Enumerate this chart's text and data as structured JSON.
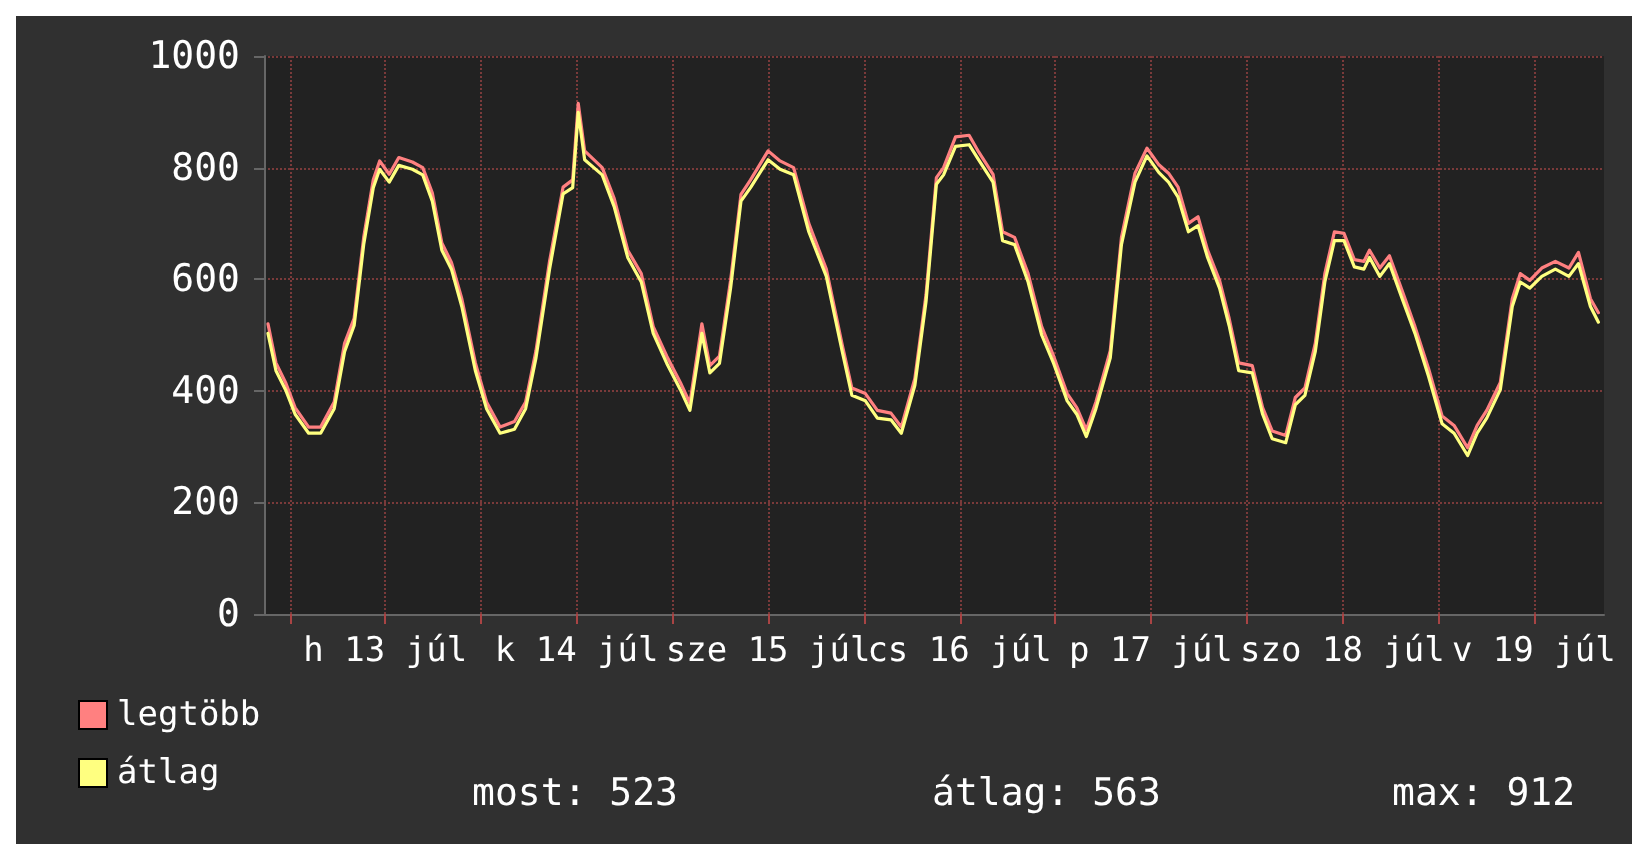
{
  "chart_data": {
    "type": "line",
    "x": [
      "--07-12T21:18",
      "--07-12T22:18",
      "--07-12T23:30",
      "--07-13T00:42",
      "--07-13T02:24",
      "--07-13T03:54",
      "--07-13T05:36",
      "--07-13T06:54",
      "--07-13T08:06",
      "--07-13T09:18",
      "--07-13T10:30",
      "--07-13T11:18",
      "--07-13T12:30",
      "--07-13T13:42",
      "--07-13T15:24",
      "--07-13T16:42",
      "--07-13T17:54",
      "--07-13T19:06",
      "--07-13T20:18",
      "--07-13T21:36",
      "--07-13T23:18",
      "--07-14T00:42",
      "--07-14T02:24",
      "--07-14T04:12",
      "--07-14T05:36",
      "--07-14T06:54",
      "--07-14T08:36",
      "--07-14T10:18",
      "--07-14T11:30",
      "--07-14T12:12",
      "--07-14T13:00",
      "--07-14T15:12",
      "--07-14T16:42",
      "--07-14T18:24",
      "--07-14T20:06",
      "--07-14T21:36",
      "--07-14T23:18",
      "--07-15T01:00",
      "--07-15T02:12",
      "--07-15T03:42",
      "--07-15T04:42",
      "--07-15T05:54",
      "--07-15T07:18",
      "--07-15T08:36",
      "--07-15T09:48",
      "--07-15T12:00",
      "--07-15T13:30",
      "--07-15T15:12",
      "--07-15T17:06",
      "--07-15T19:18",
      "--07-15T21:18",
      "--07-15T22:30",
      "--07-16T00:12",
      "--07-16T01:42",
      "--07-16T03:24",
      "--07-16T04:42",
      "--07-16T06:24",
      "--07-16T07:48",
      "--07-16T09:06",
      "--07-16T10:00",
      "--07-16T11:30",
      "--07-16T13:12",
      "--07-16T14:24",
      "--07-16T16:12",
      "--07-16T17:24",
      "--07-16T18:54",
      "--07-16T20:36",
      "--07-16T22:18",
      "--07-16T23:48",
      "--07-17T01:30",
      "--07-17T02:42",
      "--07-17T03:54",
      "--07-17T05:06",
      "--07-17T06:54",
      "--07-17T08:18",
      "--07-17T10:00",
      "--07-17T11:30",
      "--07-17T13:00",
      "--07-17T14:12",
      "--07-17T15:24",
      "--07-17T16:42",
      "--07-17T17:54",
      "--07-17T19:06",
      "--07-17T20:36",
      "--07-17T21:48",
      "--07-17T23:00",
      "--07-18T00:42",
      "--07-18T02:00",
      "--07-18T03:12",
      "--07-18T04:54",
      "--07-18T06:06",
      "--07-18T07:18",
      "--07-18T08:36",
      "--07-18T09:48",
      "--07-18T11:00",
      "--07-18T12:12",
      "--07-18T13:30",
      "--07-18T14:42",
      "--07-18T15:24",
      "--07-18T16:42",
      "--07-18T17:54",
      "--07-18T19:36",
      "--07-18T21:06",
      "--07-18T22:48",
      "--07-19T00:30",
      "--07-19T02:00",
      "--07-19T03:42",
      "--07-19T04:54",
      "--07-19T06:06",
      "--07-19T07:48",
      "--07-19T09:18",
      "--07-19T10:18",
      "--07-19T11:30",
      "--07-19T13:00",
      "--07-19T14:42",
      "--07-19T16:24",
      "--07-19T17:36",
      "--07-19T19:06",
      "--07-19T20:06"
    ],
    "series": [
      {
        "name": "legtöbb",
        "color": "#ff8080",
        "values": [
          520,
          450,
          415,
          370,
          335,
          335,
          380,
          485,
          530,
          675,
          778,
          812,
          788,
          818,
          810,
          800,
          755,
          665,
          630,
          565,
          450,
          380,
          335,
          345,
          380,
          472,
          632,
          765,
          778,
          915,
          830,
          800,
          745,
          652,
          610,
          515,
          462,
          415,
          378,
          520,
          445,
          462,
          598,
          752,
          778,
          830,
          812,
          800,
          700,
          618,
          482,
          405,
          395,
          365,
          360,
          335,
          422,
          572,
          782,
          800,
          855,
          858,
          828,
          788,
          685,
          675,
          610,
          515,
          462,
          395,
          370,
          330,
          380,
          472,
          675,
          790,
          835,
          805,
          790,
          765,
          700,
          712,
          652,
          598,
          530,
          450,
          445,
          370,
          328,
          320,
          388,
          405,
          485,
          610,
          685,
          682,
          635,
          632,
          652,
          620,
          642,
          575,
          515,
          440,
          355,
          338,
          298,
          338,
          365,
          415,
          565,
          610,
          598,
          620,
          632,
          620,
          648,
          565,
          540
        ]
      },
      {
        "name": "átlag",
        "color": "#ffff80",
        "values": [
          503,
          436,
          402,
          358,
          324,
          324,
          368,
          470,
          517,
          662,
          764,
          797,
          774,
          804,
          797,
          787,
          740,
          652,
          618,
          551,
          436,
          368,
          324,
          331,
          368,
          459,
          618,
          753,
          764,
          899,
          814,
          787,
          730,
          639,
          595,
          503,
          449,
          402,
          365,
          503,
          432,
          449,
          584,
          740,
          764,
          814,
          797,
          787,
          685,
          605,
          470,
          392,
          382,
          351,
          348,
          324,
          410,
          560,
          770,
          787,
          838,
          841,
          814,
          774,
          669,
          662,
          595,
          500,
          449,
          382,
          358,
          318,
          368,
          459,
          662,
          774,
          821,
          791,
          774,
          747,
          685,
          696,
          639,
          584,
          517,
          436,
          432,
          358,
          314,
          307,
          375,
          392,
          470,
          595,
          669,
          669,
          622,
          618,
          639,
          605,
          628,
          561,
          503,
          426,
          341,
          324,
          284,
          324,
          351,
          402,
          551,
          595,
          584,
          605,
          618,
          605,
          628,
          551,
          523
        ]
      }
    ],
    "xlim": [
      "--07-12T20:48",
      "--07-19T20:48"
    ],
    "xticks": [
      {
        "value": "--07-13T00:00",
        "label": null
      },
      {
        "value": "--07-13T12:00",
        "label": "h 13 júl"
      },
      {
        "value": "--07-14T00:00",
        "label": null
      },
      {
        "value": "--07-14T12:00",
        "label": "k 14 júl"
      },
      {
        "value": "--07-15T00:00",
        "label": null
      },
      {
        "value": "--07-15T12:00",
        "label": "sze 15 júl"
      },
      {
        "value": "--07-16T00:00",
        "label": null
      },
      {
        "value": "--07-16T12:00",
        "label": "cs 16 júl"
      },
      {
        "value": "--07-17T00:00",
        "label": null
      },
      {
        "value": "--07-17T12:00",
        "label": "p 17 júl"
      },
      {
        "value": "--07-18T00:00",
        "label": null
      },
      {
        "value": "--07-18T12:00",
        "label": "szo 18 júl"
      },
      {
        "value": "--07-19T00:00",
        "label": null
      },
      {
        "value": "--07-19T12:00",
        "label": "v 19 júl"
      }
    ],
    "ylim": [
      0,
      1000
    ],
    "yticks": [
      0,
      200,
      400,
      600,
      800,
      1000
    ],
    "grid": true,
    "legend": "bottom left",
    "marker": "none",
    "line_style": "solid",
    "annotations": [
      "most: 523",
      "átlag: 563",
      "max: 912"
    ]
  }
}
